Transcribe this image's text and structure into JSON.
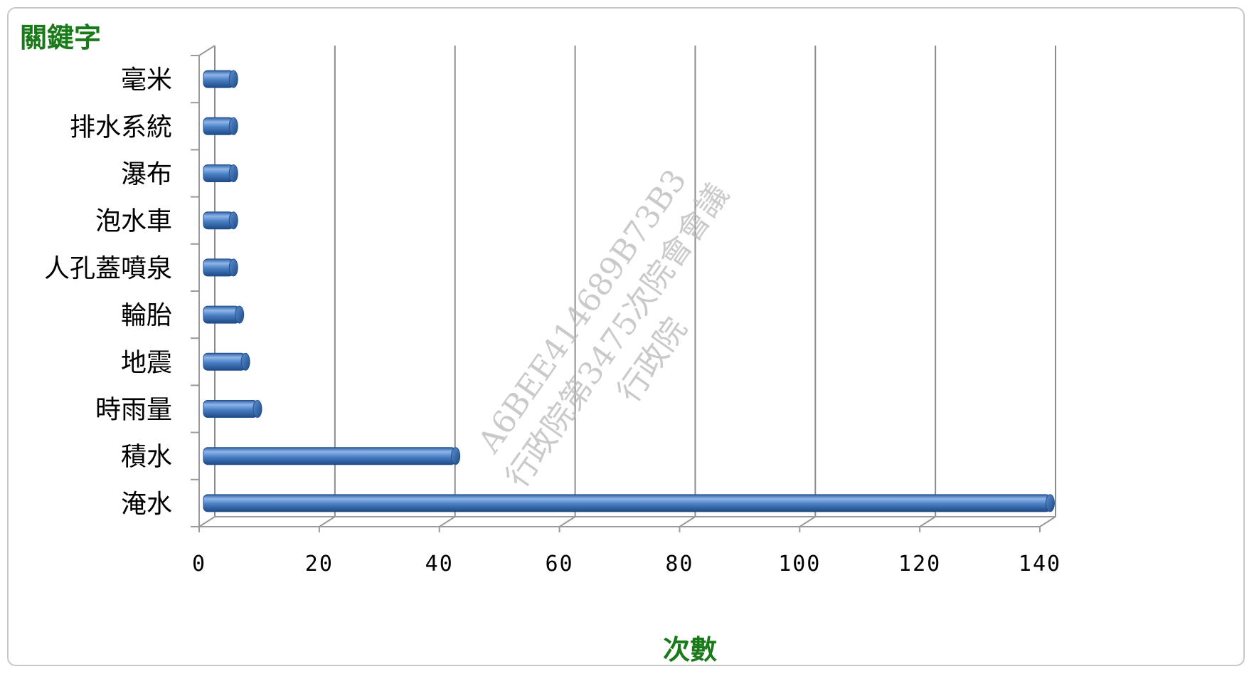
{
  "chart_data": {
    "type": "bar",
    "orientation": "horizontal",
    "ylabel": "關鍵字",
    "xlabel": "次數",
    "categories": [
      "毫米",
      "排水系統",
      "瀑布",
      "泡水車",
      "人孔蓋噴泉",
      "輪胎",
      "地震",
      "時雨量",
      "積水",
      "淹水"
    ],
    "values": [
      5,
      5,
      5,
      5,
      5,
      6,
      7,
      9,
      42,
      141
    ],
    "xlim": [
      0,
      140
    ],
    "xticks": [
      "0",
      "20",
      "40",
      "60",
      "80",
      "100",
      "120",
      "140"
    ],
    "grid": "vertical",
    "legend": "none",
    "style": "3d-cylinder"
  },
  "colors": {
    "bar": "#4a7fc4",
    "bar_dark": "#1f4f8f",
    "bar_light": "#9cc0ec",
    "axis_title": "#1a7a1a",
    "grid": "#8c8c8c"
  },
  "watermark": {
    "line1": "A6BEE414689B73B3",
    "line2": "行政院第3475次院會會議",
    "line3": "行政院"
  }
}
